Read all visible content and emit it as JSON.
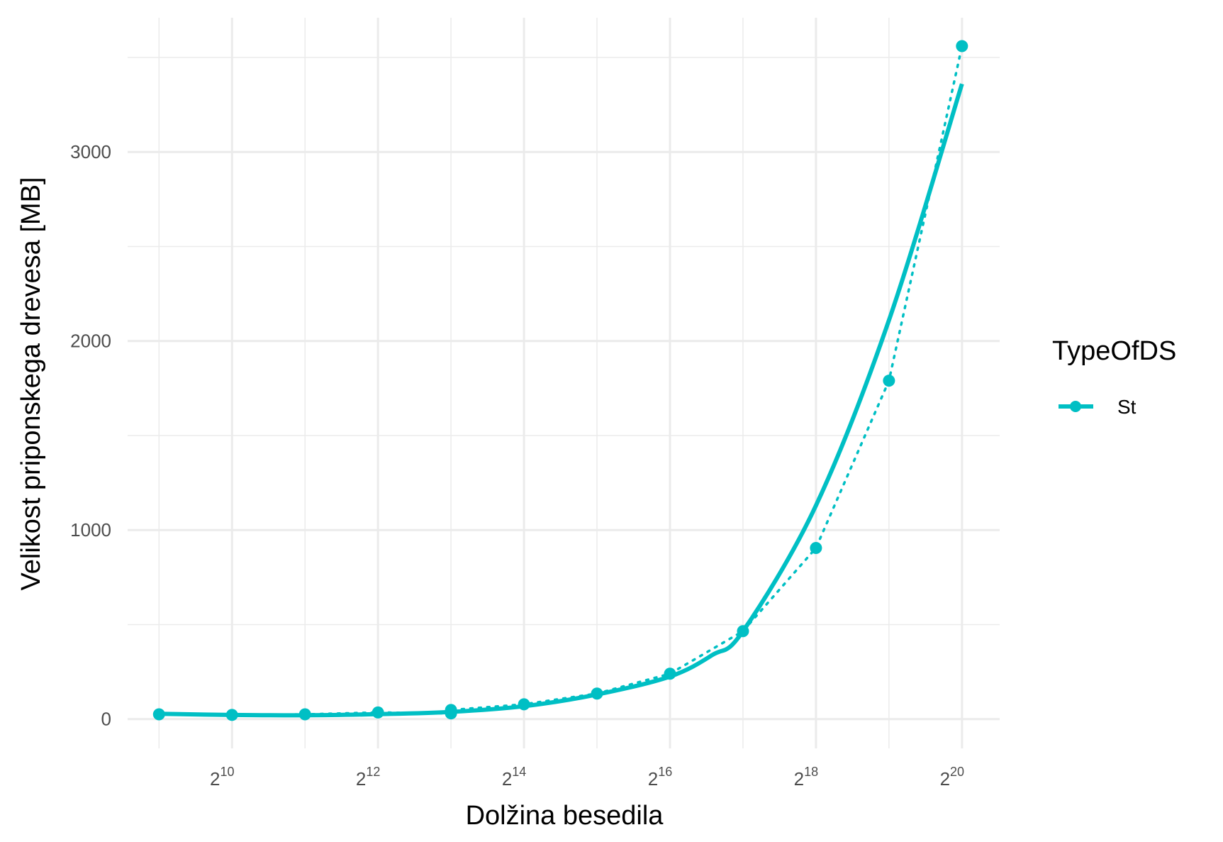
{
  "chart_data": {
    "type": "line",
    "xlabel": "Dolžina besedila",
    "ylabel": "Velikost priponskega drevesa [MB]",
    "x_scale": "log2",
    "x_tick_base": "2",
    "x_ticks": [
      {
        "value": 1024,
        "base": "2",
        "exp": "10"
      },
      {
        "value": 4096,
        "base": "2",
        "exp": "12"
      },
      {
        "value": 16384,
        "base": "2",
        "exp": "14"
      },
      {
        "value": 65536,
        "base": "2",
        "exp": "16"
      },
      {
        "value": 262144,
        "base": "2",
        "exp": "18"
      },
      {
        "value": 1048576,
        "base": "2",
        "exp": "20"
      }
    ],
    "y_ticks": [
      {
        "value": 0,
        "label": "0"
      },
      {
        "value": 1000,
        "label": "1000"
      },
      {
        "value": 2000,
        "label": "2000"
      },
      {
        "value": 3000,
        "label": "3000"
      }
    ],
    "xlim": [
      380,
      1500000
    ],
    "ylim": [
      -155,
      3710
    ],
    "grid": true,
    "legend": {
      "title": "TypeOfDS",
      "position": "right"
    },
    "series": [
      {
        "name": "St",
        "color": "#00bfc4",
        "x": [
          512,
          1024,
          2048,
          4096,
          8192,
          8192,
          16384,
          32768,
          65536,
          131072,
          262144,
          524288,
          1048576
        ],
        "y": [
          25,
          22,
          25,
          35,
          48,
          30,
          78,
          135,
          240,
          465,
          905,
          1790,
          3560
        ],
        "smooth_x": [
          512,
          1024,
          2048,
          4096,
          8192,
          16384,
          32768,
          65536,
          98304,
          131072,
          262144,
          524288,
          1048576
        ],
        "smooth_y": [
          28,
          22,
          20,
          26,
          38,
          68,
          130,
          225,
          340,
          465,
          1130,
          2110,
          3360
        ]
      }
    ]
  }
}
